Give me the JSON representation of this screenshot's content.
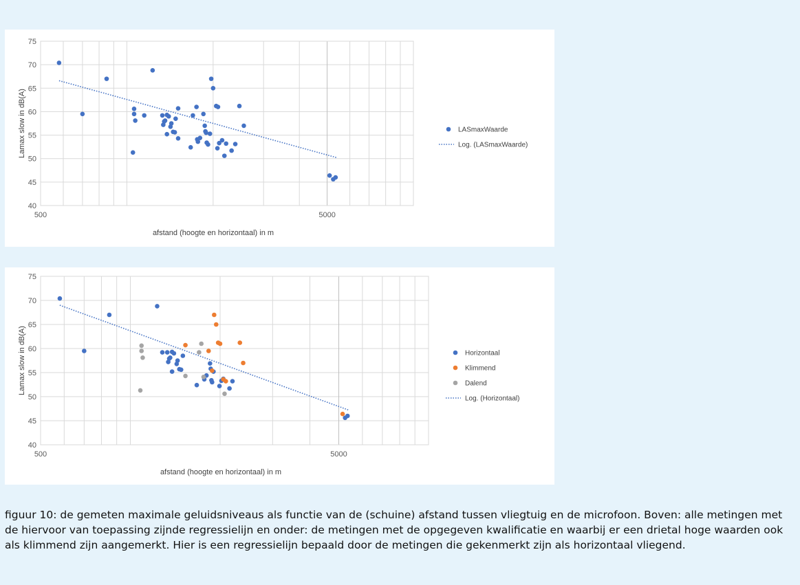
{
  "colors": {
    "horizontaal": "#4472c4",
    "klimmend": "#ed7d31",
    "dalend": "#a5a5a5",
    "trend": "#4472c4",
    "grid": "#d9d9d9",
    "background": "#e6f3fb"
  },
  "caption": "figuur 10: de gemeten maximale geluidsniveaus als functie van de (schuine) afstand tussen vliegtuig en de microfoon. Boven: alle metingen met de hiervoor van toepassing zijnde regressielijn en onder: de metingen met de opgegeven kwalificatie en waarbij er een drietal hoge waarden ook als klimmend zijn aangemerkt. Hier is een regressielijn bepaald door de metingen die gekenmerkt zijn als horizontaal vliegend.",
  "chart_data": [
    {
      "type": "scatter",
      "xscale": "log",
      "xlim": [
        500,
        10000
      ],
      "ylim": [
        40,
        75
      ],
      "xticks": [
        500,
        5000
      ],
      "xtick_labels": [
        "500",
        "5000"
      ],
      "yticks": [
        40,
        45,
        50,
        55,
        60,
        65,
        70,
        75
      ],
      "ytick_labels": [
        "40",
        "45",
        "50",
        "55",
        "60",
        "65",
        "70",
        "75"
      ],
      "xlabel": "afstand (hoogte en horizontaal) in m",
      "ylabel": "Lamax slow in dB(A)",
      "grid": true,
      "legend_position": "right",
      "series": [
        {
          "name": "LASmaxWaarde",
          "color": "#4472c4",
          "points": [
            [
              580,
              70.4
            ],
            [
              700,
              59.5
            ],
            [
              850,
              67
            ],
            [
              1060,
              60.6
            ],
            [
              1060,
              59.5
            ],
            [
              1070,
              58.1
            ],
            [
              1050,
              51.3
            ],
            [
              1150,
              59.2
            ],
            [
              1230,
              68.8
            ],
            [
              1330,
              59.2
            ],
            [
              1340,
              57.2
            ],
            [
              1350,
              57.9
            ],
            [
              1360,
              58.1
            ],
            [
              1380,
              59.3
            ],
            [
              1400,
              59
            ],
            [
              1380,
              55.2
            ],
            [
              1420,
              56.8
            ],
            [
              1430,
              57.5
            ],
            [
              1450,
              55.7
            ],
            [
              1470,
              55.6
            ],
            [
              1480,
              58.5
            ],
            [
              1510,
              60.7
            ],
            [
              1510,
              54.3
            ],
            [
              1670,
              52.4
            ],
            [
              1700,
              59.2
            ],
            [
              1750,
              61
            ],
            [
              1760,
              54.1
            ],
            [
              1770,
              53.6
            ],
            [
              1800,
              54.4
            ],
            [
              1850,
              59.5
            ],
            [
              1870,
              57
            ],
            [
              1880,
              55.8
            ],
            [
              1900,
              53.4
            ],
            [
              1890,
              55.5
            ],
            [
              1920,
              53
            ],
            [
              1950,
              55.3
            ],
            [
              1970,
              67
            ],
            [
              2000,
              65
            ],
            [
              2050,
              61.2
            ],
            [
              2080,
              61
            ],
            [
              2070,
              52.2
            ],
            [
              2100,
              53.3
            ],
            [
              2150,
              53.9
            ],
            [
              2190,
              50.6
            ],
            [
              2220,
              53.2
            ],
            [
              2320,
              51.7
            ],
            [
              2390,
              53.1
            ],
            [
              2470,
              61.2
            ],
            [
              2560,
              57
            ],
            [
              5100,
              46.4
            ],
            [
              5250,
              45.6
            ],
            [
              5350,
              46
            ]
          ]
        },
        {
          "name": "Log. (LASmaxWaarde)",
          "type": "trendline",
          "style": "dotted",
          "color": "#4472c4",
          "x": [
            580,
            5400
          ],
          "y": [
            66.6,
            50.2
          ]
        }
      ]
    },
    {
      "type": "scatter",
      "xscale": "log",
      "xlim": [
        500,
        10000
      ],
      "ylim": [
        40,
        75
      ],
      "xticks": [
        500,
        5000
      ],
      "xtick_labels": [
        "500",
        "5000"
      ],
      "yticks": [
        40,
        45,
        50,
        55,
        60,
        65,
        70,
        75
      ],
      "ytick_labels": [
        "40",
        "45",
        "50",
        "55",
        "60",
        "65",
        "70",
        "75"
      ],
      "xlabel": "afstand (hoogte en horizontaal) in m",
      "ylabel": "Lamax slow in dB(A)",
      "grid": true,
      "legend_position": "right",
      "series": [
        {
          "name": "Horizontaal",
          "color": "#4472c4",
          "points": [
            [
              580,
              70.4
            ],
            [
              700,
              59.5
            ],
            [
              850,
              67
            ],
            [
              1280,
              59.2
            ],
            [
              1230,
              68.8
            ],
            [
              1330,
              59.2
            ],
            [
              1340,
              57.2
            ],
            [
              1350,
              57.9
            ],
            [
              1360,
              58.1
            ],
            [
              1380,
              59.3
            ],
            [
              1400,
              59
            ],
            [
              1380,
              55.2
            ],
            [
              1430,
              56.8
            ],
            [
              1440,
              57.5
            ],
            [
              1460,
              55.7
            ],
            [
              1480,
              55.6
            ],
            [
              1500,
              58.5
            ],
            [
              1670,
              52.4
            ],
            [
              1770,
              53.6
            ],
            [
              1800,
              54.4
            ],
            [
              1850,
              56.9
            ],
            [
              1860,
              55.8
            ],
            [
              1870,
              53.4
            ],
            [
              1880,
              53
            ],
            [
              1900,
              55.2
            ],
            [
              1990,
              52.2
            ],
            [
              2020,
              53.3
            ],
            [
              2050,
              53.7
            ],
            [
              2150,
              51.7
            ],
            [
              2200,
              53.2
            ],
            [
              5250,
              45.6
            ],
            [
              5350,
              46
            ]
          ]
        },
        {
          "name": "Klimmend",
          "color": "#ed7d31",
          "points": [
            [
              1530,
              60.7
            ],
            [
              1830,
              59.5
            ],
            [
              1880,
              55.4
            ],
            [
              1910,
              67
            ],
            [
              1940,
              65
            ],
            [
              1970,
              61.2
            ],
            [
              2000,
              61
            ],
            [
              2050,
              53.6
            ],
            [
              2090,
              53.2
            ],
            [
              2330,
              61.2
            ],
            [
              2390,
              57
            ],
            [
              5150,
              46.4
            ]
          ]
        },
        {
          "name": "Dalend",
          "color": "#a5a5a5",
          "points": [
            [
              1090,
              60.6
            ],
            [
              1090,
              59.5
            ],
            [
              1100,
              58.1
            ],
            [
              1080,
              51.3
            ],
            [
              1530,
              54.3
            ],
            [
              1700,
              59.2
            ],
            [
              1730,
              61
            ],
            [
              1760,
              54.1
            ],
            [
              2070,
              50.6
            ]
          ]
        },
        {
          "name": "Log. (Horizontaal)",
          "type": "trendline",
          "style": "dotted",
          "color": "#4472c4",
          "x": [
            580,
            5400
          ],
          "y": [
            69,
            47.2
          ]
        }
      ]
    }
  ]
}
